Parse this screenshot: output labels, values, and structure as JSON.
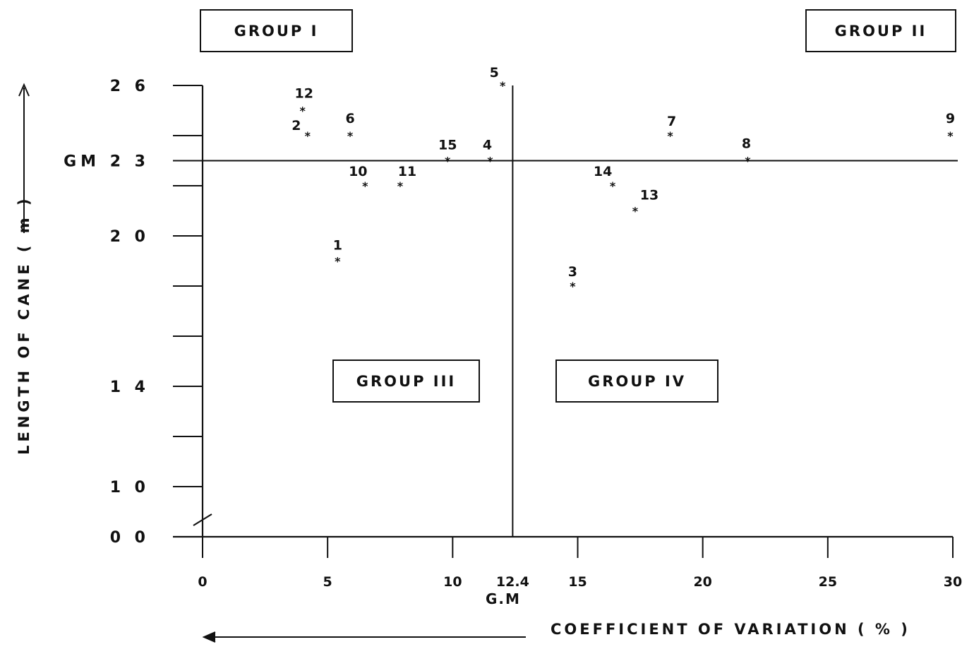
{
  "chart_data": {
    "type": "scatter",
    "title": "",
    "xlabel": "COEFFICIENT OF VARIATION ( % )",
    "ylabel": "LENGTH OF CANE ( m )",
    "xlim": [
      0,
      30
    ],
    "ylim": [
      0,
      26
    ],
    "x_ticks": [
      {
        "value": 0,
        "label": "0"
      },
      {
        "value": 5,
        "label": "5"
      },
      {
        "value": 10,
        "label": "10"
      },
      {
        "value": 12.4,
        "label": "12.4"
      },
      {
        "value": 15,
        "label": "15"
      },
      {
        "value": 20,
        "label": "20"
      },
      {
        "value": 25,
        "label": "25"
      },
      {
        "value": 30,
        "label": "30"
      }
    ],
    "y_ticks": [
      {
        "value": 0,
        "label": "0 0"
      },
      {
        "value": 10,
        "label": "1 0"
      },
      {
        "value": 14,
        "label": "1 4"
      },
      {
        "value": 20,
        "label": "2 0"
      },
      {
        "value": 23,
        "label": "GM 2 3"
      },
      {
        "value": 26,
        "label": "2 6"
      }
    ],
    "x_gm_label": "G.M",
    "gm_x": 12.4,
    "gm_y": 23,
    "points": [
      {
        "label": "1",
        "x": 5.4,
        "y": 19
      },
      {
        "label": "2",
        "x": 4.2,
        "y": 24
      },
      {
        "label": "3",
        "x": 14.8,
        "y": 18
      },
      {
        "label": "4",
        "x": 11.5,
        "y": 23
      },
      {
        "label": "5",
        "x": 12.0,
        "y": 26
      },
      {
        "label": "6",
        "x": 5.9,
        "y": 24
      },
      {
        "label": "7",
        "x": 18.7,
        "y": 24
      },
      {
        "label": "8",
        "x": 21.8,
        "y": 23
      },
      {
        "label": "9",
        "x": 29.9,
        "y": 24
      },
      {
        "label": "10",
        "x": 6.5,
        "y": 22
      },
      {
        "label": "11",
        "x": 7.9,
        "y": 22
      },
      {
        "label": "12",
        "x": 4.0,
        "y": 25
      },
      {
        "label": "13",
        "x": 17.3,
        "y": 21
      },
      {
        "label": "14",
        "x": 16.4,
        "y": 22
      },
      {
        "label": "15",
        "x": 9.8,
        "y": 23
      }
    ],
    "groups": [
      {
        "name": "GROUP I",
        "roman": "I"
      },
      {
        "name": "GROUP II",
        "roman": "II"
      },
      {
        "name": "GROUP III",
        "roman": "III"
      },
      {
        "name": "GROUP IV",
        "roman": "IV"
      }
    ],
    "arrow_y": "up",
    "arrow_x": "left"
  },
  "labels": {
    "group1": "GROUP I",
    "group2": "GROUP II",
    "group3": "GROUP III",
    "group4": "GROUP IV",
    "ylabel": "LENGTH OF CANE ( m )",
    "xlabel": "COEFFICIENT OF VARIATION ( % )",
    "gm_x_label": "G.M"
  }
}
